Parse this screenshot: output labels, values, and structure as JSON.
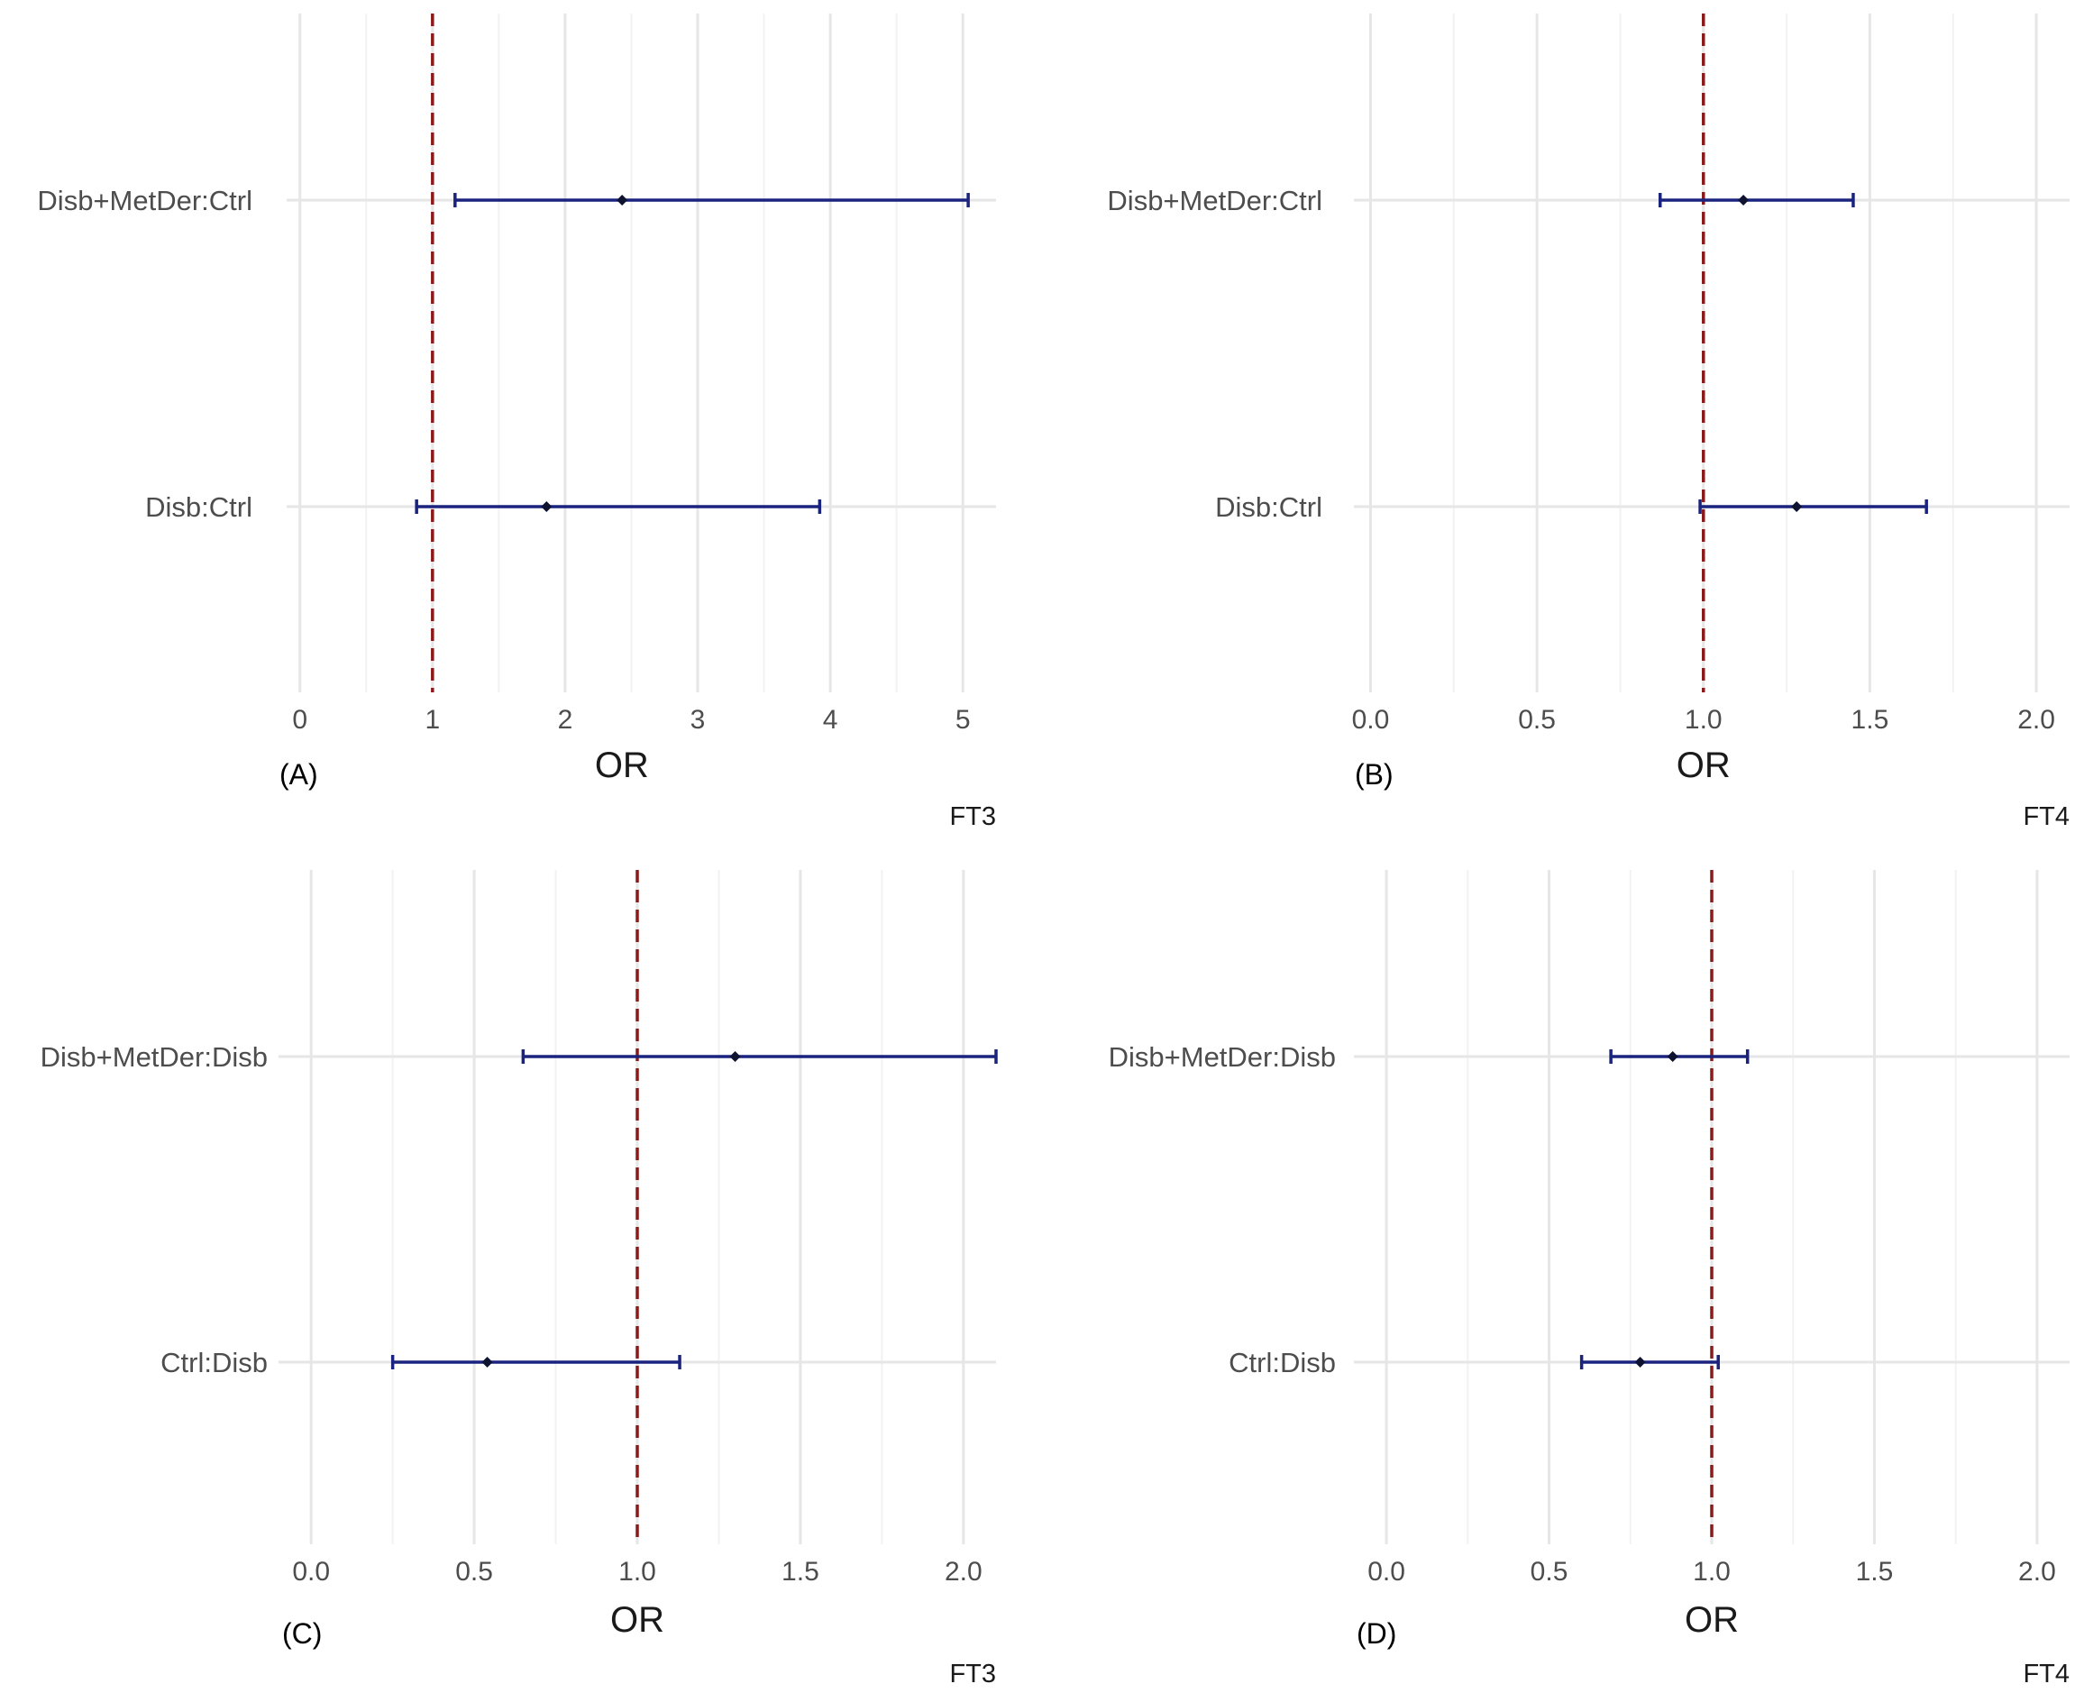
{
  "colors": {
    "grid_major": "#e6e6e6",
    "grid_minor": "#f2f2f2",
    "reference_line": "#8b1a1a",
    "interval": "#1a237e",
    "point": "#0d1330"
  },
  "chart_data": [
    {
      "type": "forest",
      "panel_label": "(A)",
      "caption": "FT3",
      "xlabel": "OR",
      "xlim": [
        -0.1,
        5.25
      ],
      "xticks": [
        0,
        1,
        2,
        3,
        4,
        5
      ],
      "xtick_labels": [
        "0",
        "1",
        "2",
        "3",
        "4",
        "5"
      ],
      "minor_xticks": [
        0.5,
        1.5,
        2.5,
        3.5,
        4.5
      ],
      "reference": 1,
      "rows": [
        {
          "label": "Disb+MetDer:Ctrl",
          "estimate": 2.43,
          "lower": 1.17,
          "upper": 5.04
        },
        {
          "label": "Disb:Ctrl",
          "estimate": 1.86,
          "lower": 0.88,
          "upper": 3.92
        }
      ]
    },
    {
      "type": "forest",
      "panel_label": "(B)",
      "caption": "FT4",
      "xlabel": "OR",
      "xlim": [
        -0.05,
        2.1
      ],
      "xticks": [
        0.0,
        0.5,
        1.0,
        1.5,
        2.0
      ],
      "xtick_labels": [
        "0.0",
        "0.5",
        "1.0",
        "1.5",
        "2.0"
      ],
      "minor_xticks": [
        0.25,
        0.75,
        1.25,
        1.75
      ],
      "reference": 1,
      "rows": [
        {
          "label": "Disb+MetDer:Ctrl",
          "estimate": 1.12,
          "lower": 0.87,
          "upper": 1.45
        },
        {
          "label": "Disb:Ctrl",
          "estimate": 1.28,
          "lower": 0.99,
          "upper": 1.67
        }
      ]
    },
    {
      "type": "forest",
      "panel_label": "(C)",
      "caption": "FT3",
      "xlabel": "OR",
      "xlim": [
        -0.1,
        2.1
      ],
      "xticks": [
        0.0,
        0.5,
        1.0,
        1.5,
        2.0
      ],
      "xtick_labels": [
        "0.0",
        "0.5",
        "1.0",
        "1.5",
        "2.0"
      ],
      "minor_xticks": [
        0.25,
        0.75,
        1.25,
        1.75
      ],
      "reference": 1,
      "rows": [
        {
          "label": "Disb+MetDer:Disb",
          "estimate": 1.3,
          "lower": 0.65,
          "upper": 2.1
        },
        {
          "label": "Ctrl:Disb",
          "estimate": 0.54,
          "lower": 0.25,
          "upper": 1.13
        }
      ]
    },
    {
      "type": "forest",
      "panel_label": "(D)",
      "caption": "FT4",
      "xlabel": "OR",
      "xlim": [
        -0.1,
        2.1
      ],
      "xticks": [
        0.0,
        0.5,
        1.0,
        1.5,
        2.0
      ],
      "xtick_labels": [
        "0.0",
        "0.5",
        "1.0",
        "1.5",
        "2.0"
      ],
      "minor_xticks": [
        0.25,
        0.75,
        1.25,
        1.75
      ],
      "reference": 1,
      "rows": [
        {
          "label": "Disb+MetDer:Disb",
          "estimate": 0.88,
          "lower": 0.69,
          "upper": 1.11
        },
        {
          "label": "Ctrl:Disb",
          "estimate": 0.78,
          "lower": 0.6,
          "upper": 1.02
        }
      ]
    }
  ]
}
